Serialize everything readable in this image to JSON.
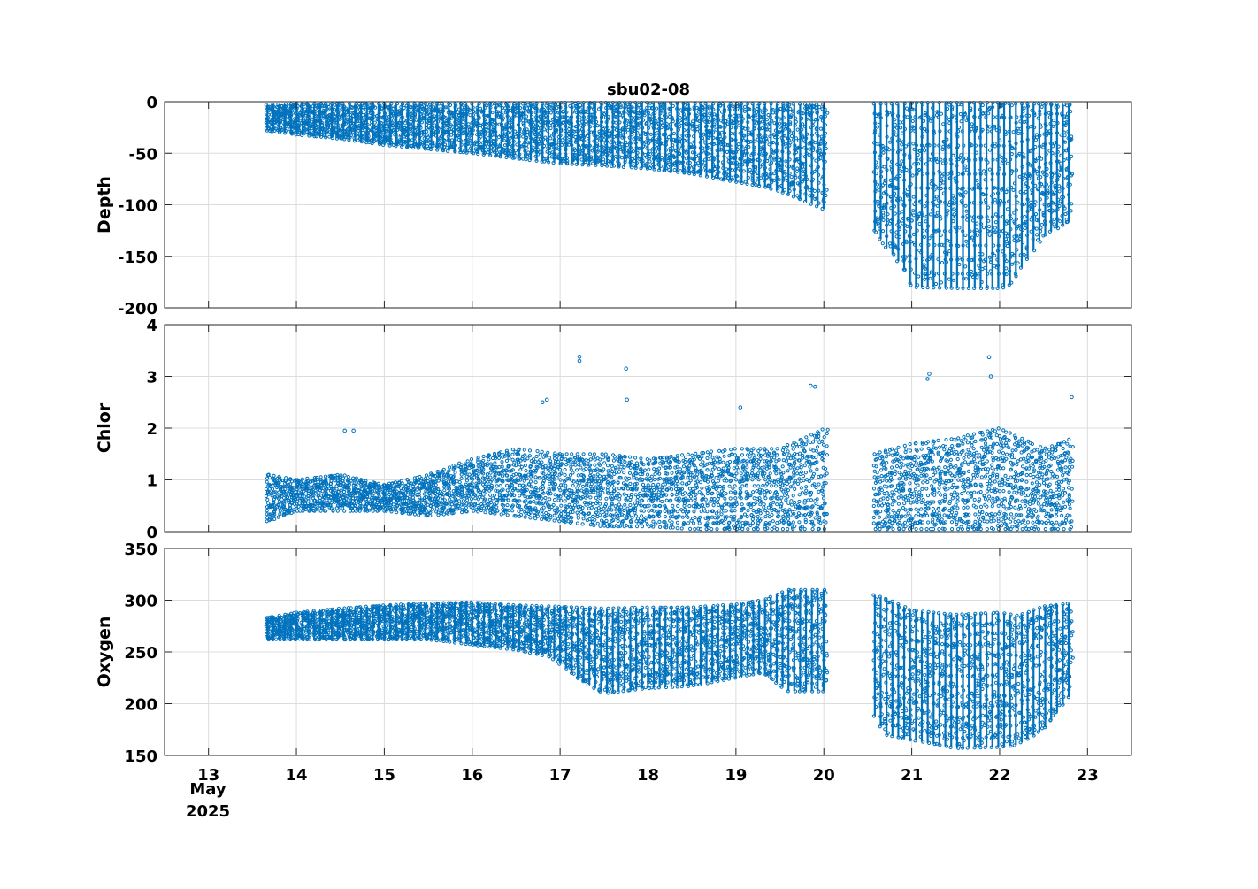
{
  "chart_data": {
    "title": "sbu02-08",
    "type": "scatter",
    "marker_color": "#0072BD",
    "grid": true,
    "x_axis": {
      "unit": "day of month",
      "range": [
        12.5,
        23.5
      ],
      "ticks": [
        13,
        14,
        15,
        16,
        17,
        18,
        19,
        20,
        21,
        22,
        23
      ],
      "tick_labels": [
        "13",
        "14",
        "15",
        "16",
        "17",
        "18",
        "19",
        "20",
        "21",
        "22",
        "23"
      ],
      "secondary_label_line1": "May",
      "secondary_label_line2": "2025"
    },
    "segments": [
      {
        "start": 13.67,
        "end": 20.03
      },
      {
        "start": 20.58,
        "end": 22.82
      }
    ],
    "panels": [
      {
        "ylabel": "Depth",
        "ylim": [
          -200,
          0
        ],
        "yticks": [
          0,
          -50,
          -100,
          -150,
          -200
        ],
        "ytick_labels": [
          "0",
          "-50",
          "-100",
          "-150",
          "-200"
        ],
        "envelope": {
          "x": [
            13.67,
            14.0,
            14.5,
            15.0,
            15.5,
            16.0,
            16.5,
            16.8,
            17.0,
            17.5,
            18.0,
            18.5,
            19.0,
            19.3,
            19.6,
            20.03,
            20.58,
            20.7,
            20.9,
            21.0,
            21.5,
            22.0,
            22.1,
            22.3,
            22.5,
            22.82
          ],
          "upper": [
            -3,
            -2,
            -2,
            -2,
            -2,
            -2,
            -2,
            -2,
            -1,
            -1,
            -1,
            -2,
            -2,
            -2,
            -2,
            -3,
            -2,
            -2,
            -2,
            -1,
            -1,
            -1,
            -2,
            -2,
            -2,
            -3
          ],
          "lower": [
            -28,
            -32,
            -36,
            -42,
            -46,
            -50,
            -55,
            -58,
            -60,
            -62,
            -65,
            -70,
            -78,
            -82,
            -90,
            -105,
            -125,
            -140,
            -160,
            -180,
            -181,
            -181,
            -180,
            -155,
            -130,
            -115
          ]
        }
      },
      {
        "ylabel": "Chlor",
        "ylim": [
          0,
          4
        ],
        "yticks": [
          0,
          1,
          2,
          3,
          4
        ],
        "ytick_labels": [
          "0",
          "1",
          "2",
          "3",
          "4"
        ],
        "envelope": {
          "x": [
            13.67,
            14.0,
            14.5,
            15.0,
            15.5,
            16.0,
            16.5,
            17.0,
            17.5,
            18.0,
            18.5,
            19.0,
            19.5,
            20.03,
            20.58,
            21.0,
            21.5,
            22.0,
            22.5,
            22.82
          ],
          "typical_low": [
            0.2,
            0.4,
            0.4,
            0.4,
            0.3,
            0.4,
            0.3,
            0.2,
            0.1,
            0.1,
            0.05,
            0.05,
            0.05,
            0.05,
            0.05,
            0.05,
            0.05,
            0.05,
            0.05,
            0.05
          ],
          "typical_high": [
            1.1,
            1.0,
            1.1,
            0.9,
            1.1,
            1.4,
            1.6,
            1.5,
            1.5,
            1.4,
            1.5,
            1.6,
            1.6,
            2.0,
            1.5,
            1.7,
            1.8,
            2.0,
            1.6,
            1.8
          ]
        },
        "outliers": [
          {
            "x": 14.55,
            "y": 1.95
          },
          {
            "x": 14.65,
            "y": 1.95
          },
          {
            "x": 16.8,
            "y": 2.5
          },
          {
            "x": 16.85,
            "y": 2.55
          },
          {
            "x": 17.22,
            "y": 3.38
          },
          {
            "x": 17.22,
            "y": 3.3
          },
          {
            "x": 17.75,
            "y": 3.15
          },
          {
            "x": 17.76,
            "y": 2.55
          },
          {
            "x": 19.05,
            "y": 2.4
          },
          {
            "x": 19.85,
            "y": 2.82
          },
          {
            "x": 19.9,
            "y": 2.8
          },
          {
            "x": 21.2,
            "y": 3.05
          },
          {
            "x": 21.18,
            "y": 2.95
          },
          {
            "x": 21.88,
            "y": 3.37
          },
          {
            "x": 21.9,
            "y": 3.0
          },
          {
            "x": 22.82,
            "y": 2.6
          }
        ]
      },
      {
        "ylabel": "Oxygen",
        "ylim": [
          150,
          350
        ],
        "yticks": [
          150,
          200,
          250,
          300,
          350
        ],
        "ytick_labels": [
          "150",
          "200",
          "250",
          "300",
          "350"
        ],
        "envelope": {
          "x": [
            13.67,
            14.0,
            14.5,
            15.0,
            15.5,
            16.0,
            16.5,
            16.9,
            17.2,
            17.5,
            18.0,
            18.5,
            19.0,
            19.3,
            19.6,
            20.03,
            20.58,
            20.7,
            21.0,
            21.5,
            22.0,
            22.2,
            22.5,
            22.82
          ],
          "upper": [
            283,
            288,
            292,
            295,
            297,
            298,
            295,
            294,
            293,
            292,
            293,
            293,
            296,
            300,
            310,
            310,
            305,
            302,
            290,
            286,
            288,
            285,
            294,
            297
          ],
          "lower": [
            262,
            262,
            262,
            262,
            262,
            257,
            252,
            245,
            225,
            210,
            215,
            217,
            225,
            230,
            212,
            212,
            188,
            170,
            165,
            157,
            158,
            160,
            175,
            210
          ]
        }
      }
    ]
  }
}
